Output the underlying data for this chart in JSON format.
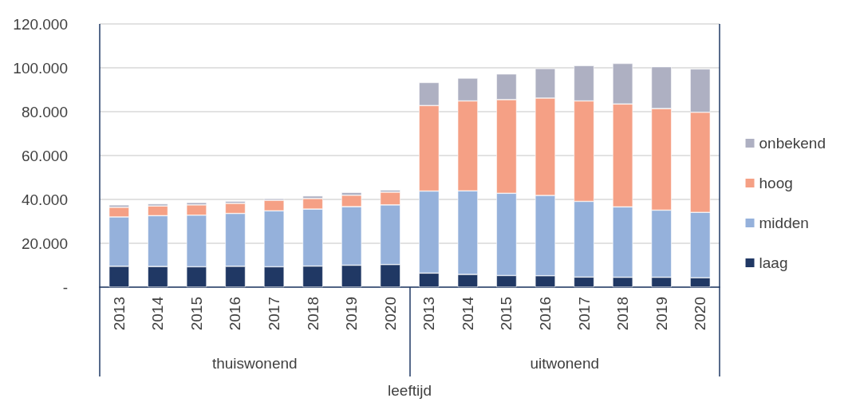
{
  "chart_data": {
    "type": "bar",
    "stacked": true,
    "xlabel": "leeftijd",
    "annotations": [
      "thuiswonend",
      "uitwonend"
    ],
    "categories": [
      "2013",
      "2014",
      "2015",
      "2016",
      "2017",
      "2018",
      "2019",
      "2020",
      "2013",
      "2014",
      "2015",
      "2016",
      "2017",
      "2018",
      "2019",
      "2020"
    ],
    "series": [
      {
        "name": "laag",
        "color": "#203864",
        "values": [
          9500,
          9400,
          9300,
          9500,
          9300,
          9600,
          10000,
          10300,
          6400,
          5800,
          5300,
          5200,
          4600,
          4500,
          4500,
          4300
        ]
      },
      {
        "name": "midden",
        "color": "#95b1db",
        "values": [
          22500,
          23200,
          23500,
          24100,
          25500,
          26000,
          26700,
          27200,
          37400,
          38100,
          37500,
          36600,
          34500,
          32100,
          30600,
          29800
        ]
      },
      {
        "name": "hoog",
        "color": "#f5a085",
        "values": [
          4400,
          4400,
          4700,
          4600,
          4800,
          4800,
          5200,
          5800,
          39000,
          41000,
          42700,
          44400,
          45800,
          46900,
          46300,
          45600
        ]
      },
      {
        "name": "onbekend",
        "color": "#aeb0c2",
        "values": [
          1100,
          1000,
          1100,
          1000,
          800,
          1200,
          1300,
          1000,
          10500,
          10400,
          11700,
          13500,
          16100,
          18500,
          19100,
          19800
        ]
      }
    ],
    "ylim": [
      0,
      120000
    ],
    "yticks": [
      {
        "value": 0,
        "label": "-"
      },
      {
        "value": 20000,
        "label": "20.000"
      },
      {
        "value": 40000,
        "label": "40.000"
      },
      {
        "value": 60000,
        "label": "60.000"
      },
      {
        "value": 80000,
        "label": "80.000"
      },
      {
        "value": 100000,
        "label": "100.000"
      },
      {
        "value": 120000,
        "label": "120.000"
      }
    ],
    "grid": "y",
    "legend": "right"
  }
}
